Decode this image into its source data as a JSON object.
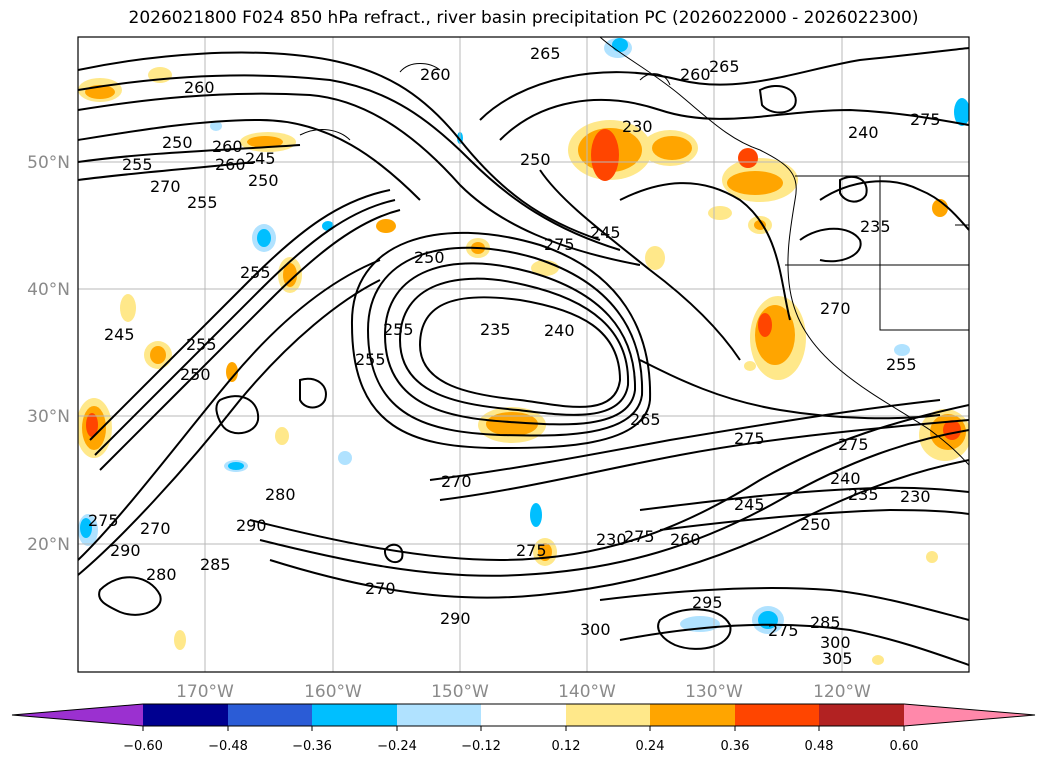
{
  "title": "2026021800 F024 850 hPa refract., river basin precipitation PC (2026022000 - 2026022300)",
  "map": {
    "lon_labels": [
      "170°W",
      "160°W",
      "150°W",
      "140°W",
      "130°W",
      "120°W"
    ],
    "lat_labels": [
      "50°N",
      "40°N",
      "30°N",
      "20°N"
    ],
    "contour_labels": [
      "260",
      "265",
      "260",
      "260",
      "250",
      "260",
      "265",
      "255",
      "250",
      "245",
      "270",
      "255",
      "260",
      "250",
      "275",
      "245",
      "230",
      "240",
      "250",
      "255",
      "255",
      "255",
      "250",
      "245",
      "235",
      "240",
      "265",
      "275",
      "255",
      "255",
      "275",
      "230",
      "270",
      "280",
      "290",
      "285",
      "280",
      "290",
      "270",
      "275",
      "270",
      "290",
      "270",
      "275",
      "260",
      "245",
      "275",
      "230",
      "250",
      "240",
      "235",
      "235",
      "275",
      "295",
      "300",
      "275",
      "285",
      "300",
      "305"
    ]
  },
  "colorbar": {
    "colors": [
      "#9b30d0",
      "#000090",
      "#2b5cd6",
      "#00bfff",
      "#b0e2ff",
      "#ffffff",
      "#ffe88a",
      "#ffa500",
      "#ff4500",
      "#b22222",
      "#ff88aa"
    ],
    "tick_labels": [
      "−0.60",
      "−0.48",
      "−0.36",
      "−0.24",
      "−0.12",
      "0.12",
      "0.24",
      "0.36",
      "0.48",
      "0.60"
    ]
  }
}
